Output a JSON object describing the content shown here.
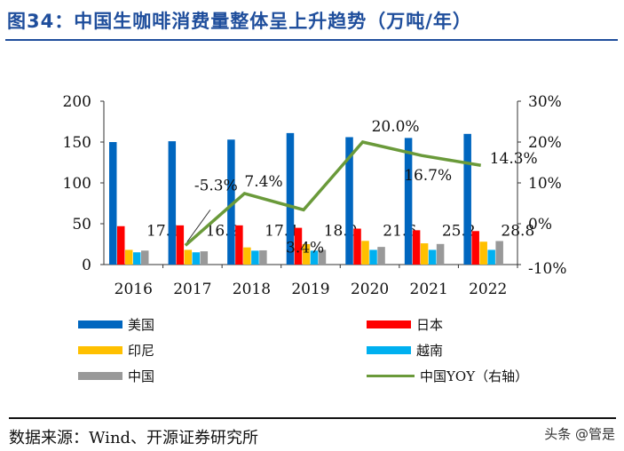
{
  "title": "图34：中国生咖啡消费量整体呈上升趋势（万吨/年）",
  "source": "数据来源：Wind、开源证券研究所",
  "watermark": "头条 @管是",
  "chart_data": {
    "type": "bar",
    "categories": [
      "2016",
      "2017",
      "2018",
      "2019",
      "2020",
      "2021",
      "2022"
    ],
    "ylim": [
      0,
      200
    ],
    "yticks": [
      "0",
      "50",
      "100",
      "150",
      "200"
    ],
    "y2lim": [
      -10,
      30
    ],
    "y2ticks": [
      "-10%",
      "0%",
      "10%",
      "20%",
      "30%"
    ],
    "series": [
      {
        "name": "美国",
        "color": "#0066bf",
        "values": [
          150,
          151,
          153,
          161,
          156,
          155,
          160
        ]
      },
      {
        "name": "日本",
        "color": "#ff0000",
        "values": [
          47,
          48,
          48,
          45,
          44,
          42,
          41
        ]
      },
      {
        "name": "印尼",
        "color": "#ffc000",
        "values": [
          18,
          18,
          21,
          25,
          29,
          26,
          28
        ]
      },
      {
        "name": "越南",
        "color": "#00b0f0",
        "values": [
          15,
          15,
          17,
          17,
          18,
          18,
          18
        ]
      },
      {
        "name": "中国",
        "color": "#999999",
        "values": [
          17.1,
          16.2,
          17.4,
          18.0,
          21.6,
          25.2,
          28.8
        ],
        "labels": [
          "17.1",
          "16.2",
          "17.4",
          "18.0",
          "21.6",
          "25.2",
          "28.8"
        ]
      }
    ],
    "line": {
      "name": "中国YOY（右轴）",
      "color": "#6a9a3a",
      "axis": "right",
      "values": [
        null,
        -5.3,
        7.4,
        3.4,
        20.0,
        16.7,
        14.3
      ],
      "labels": [
        "",
        "-5.3%",
        "7.4%",
        "3.4%",
        "20.0%",
        "16.7%",
        "14.3%"
      ]
    },
    "legend": "bottom"
  }
}
